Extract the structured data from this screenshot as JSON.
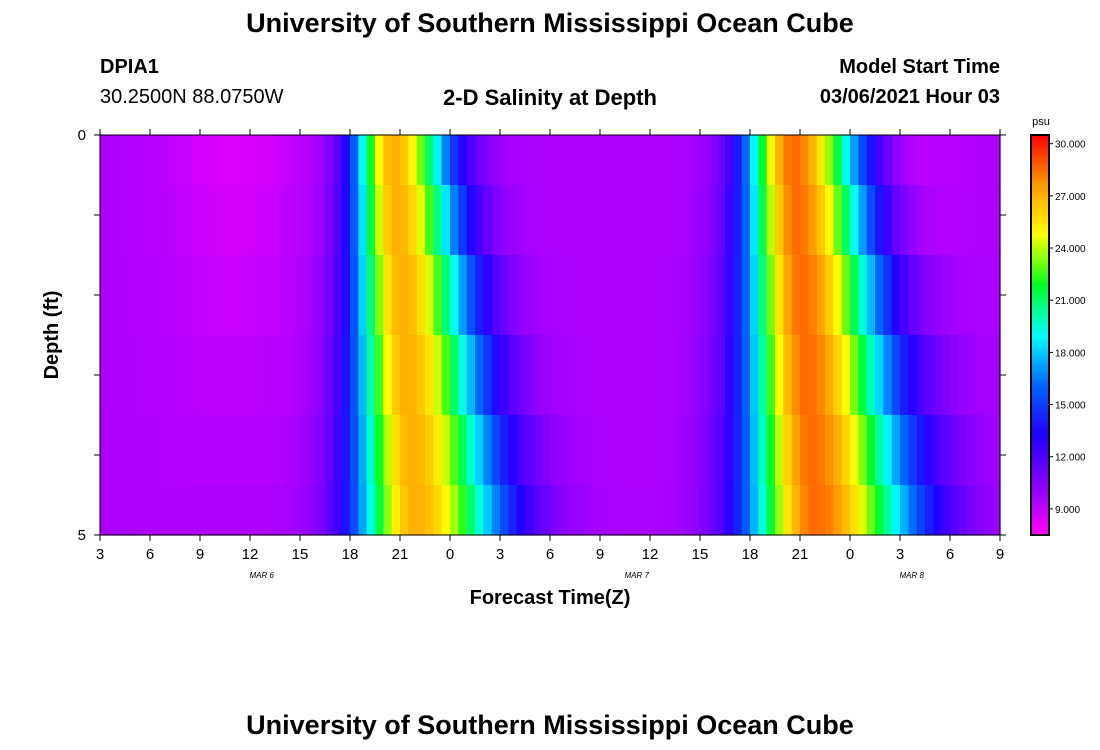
{
  "header": {
    "title_top": "University of Southern Mississippi Ocean Cube",
    "station_id": "DPIA1",
    "station_coords": "30.2500N 88.0750W",
    "chart_title": "2-D Salinity at Depth",
    "model_start_label": "Model Start Time",
    "model_start_value": "03/06/2021 Hour 03",
    "title_bottom": "University of Southern Mississippi Ocean Cube"
  },
  "chart_data": {
    "type": "heatmap",
    "title": "2-D Salinity at Depth",
    "xlabel": "Forecast Time(Z)",
    "ylabel": "Depth (ft)",
    "x_tick_labels": [
      "3",
      "6",
      "9",
      "12",
      "15",
      "18",
      "21",
      "0",
      "3",
      "6",
      "9",
      "12",
      "15",
      "18",
      "21",
      "0",
      "3",
      "6",
      "9"
    ],
    "x_hours": [
      0,
      3,
      6,
      9,
      12,
      15,
      18,
      21,
      24,
      27,
      30,
      33,
      36,
      39,
      42,
      45,
      48,
      51,
      54
    ],
    "date_labels": [
      {
        "text": "MAR 6",
        "hour": 9.7
      },
      {
        "text": "MAR 7",
        "hour": 32.2
      },
      {
        "text": "MAR 8",
        "hour": 48.7
      }
    ],
    "y_tick_labels": [
      "0",
      "5"
    ],
    "ylim": [
      0,
      5
    ],
    "depth_levels_ft": [
      0.25,
      1.0,
      2.0,
      3.0,
      4.0,
      4.75
    ],
    "colorbar": {
      "unit": "psu",
      "range": [
        7.5,
        30.5
      ],
      "tick_labels": [
        "30.000",
        "27.000",
        "24.000",
        "21.000",
        "18.000",
        "15.000",
        "12.000",
        "9.000"
      ],
      "tick_values": [
        30,
        27,
        24,
        21,
        18,
        15,
        12,
        9
      ],
      "stops": [
        "#ff00ff",
        "#8800ff",
        "#2200ff",
        "#0066ff",
        "#00ffff",
        "#00ff22",
        "#ffff00",
        "#ff9900",
        "#ff0000"
      ]
    },
    "model": {
      "base_salinity": 9.5,
      "pulse1": {
        "peak_hour": 17.5,
        "peak": 27,
        "width_surface": 5,
        "width_bottom": 8
      },
      "pulse2": {
        "peak_hour": 41.5,
        "peak": 28.5,
        "width_surface": 6,
        "width_bottom": 9
      }
    }
  }
}
